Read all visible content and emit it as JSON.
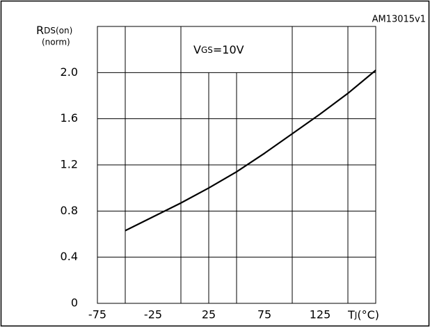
{
  "chart_data": {
    "type": "line",
    "code": "AM13015v1",
    "y_label": {
      "main": "R",
      "sub": "DS(on)",
      "unit": "(norm)"
    },
    "x_label": {
      "main": "T",
      "sub": "J",
      "unit": "(°C)"
    },
    "annotation": {
      "main": "V",
      "sub": "GS",
      "rest": "=10V"
    },
    "x": [
      -50,
      -25,
      0,
      25,
      50,
      75,
      100,
      125,
      150,
      175
    ],
    "series": [
      {
        "color": "#000000",
        "values": [
          0.63,
          0.75,
          0.87,
          1.0,
          1.14,
          1.3,
          1.47,
          1.64,
          1.82,
          2.02
        ]
      }
    ],
    "xlim": [
      -75,
      175
    ],
    "xticks": [
      -75,
      -25,
      25,
      75,
      125
    ],
    "xgrid": [
      -50,
      0,
      25,
      50,
      100,
      150
    ],
    "ylim": [
      0,
      2.4
    ],
    "yticks": [
      0,
      0.4,
      0.8,
      1.2,
      1.6,
      {
        "value": 2.0,
        "label": "2.0"
      }
    ],
    "grid": true
  }
}
